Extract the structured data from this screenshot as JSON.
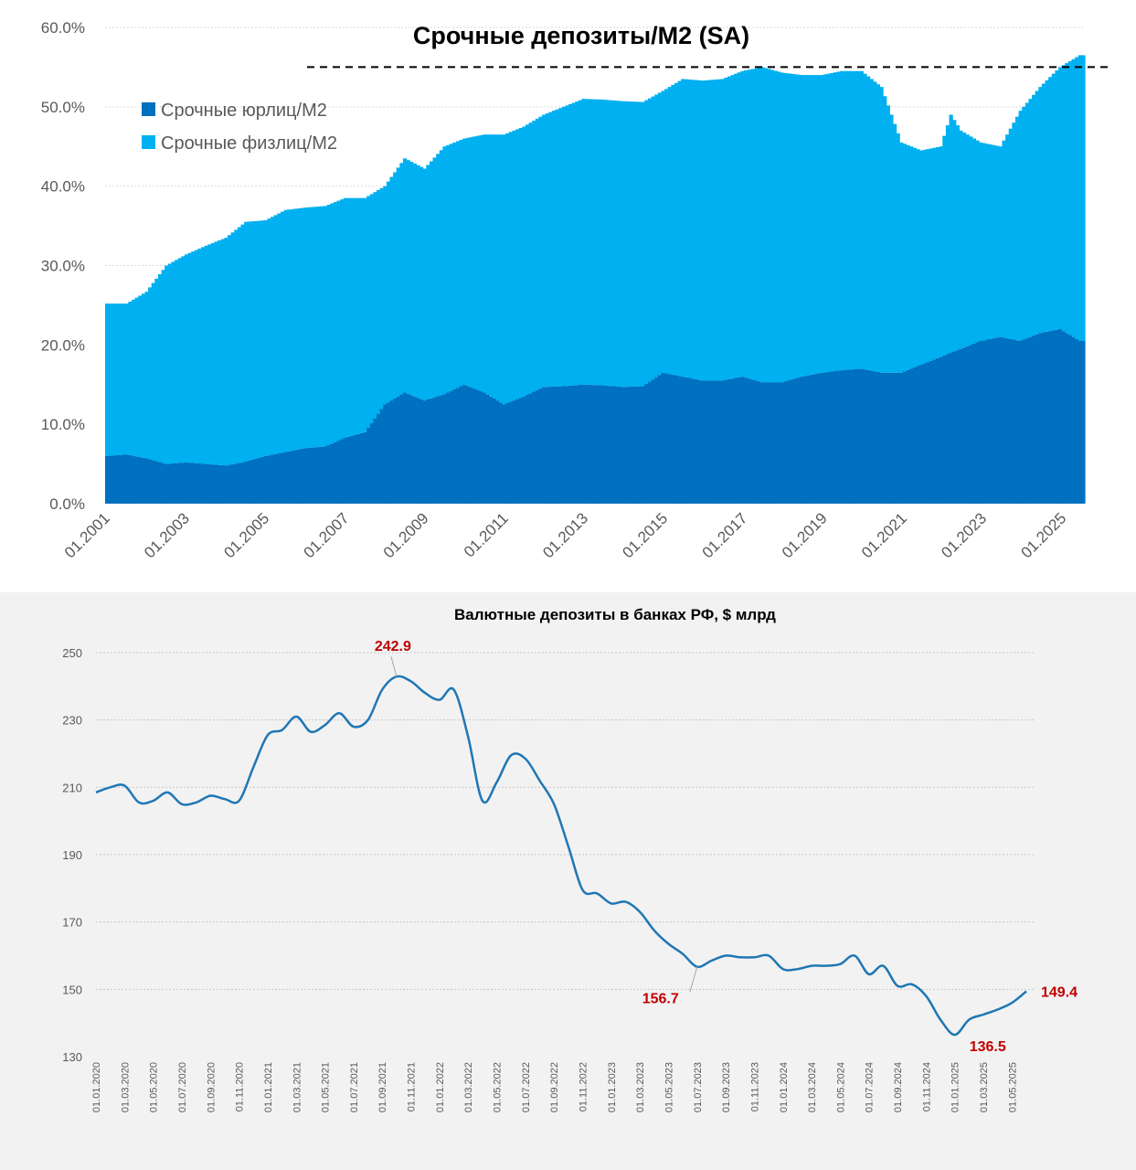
{
  "chart_data": [
    {
      "type": "area",
      "stacked": true,
      "title": "Срочные депозиты/М2 (SA)",
      "ylim": [
        0,
        60
      ],
      "y_tick_labels": [
        "0.0%",
        "10.0%",
        "20.0%",
        "30.0%",
        "40.0%",
        "50.0%",
        "60.0%"
      ],
      "x_tick_labels": [
        "01.2001",
        "01.2003",
        "01.2005",
        "01.2007",
        "01.2009",
        "01.2011",
        "01.2013",
        "01.2015",
        "01.2017",
        "01.2019",
        "01.2021",
        "01.2023",
        "01.2025"
      ],
      "grid": true,
      "legend_position": "top-left",
      "reference_line": {
        "style": "dashed",
        "value": 55.0
      },
      "x": [
        "01.2001",
        "07.2001",
        "01.2002",
        "07.2002",
        "01.2003",
        "07.2003",
        "01.2004",
        "07.2004",
        "01.2005",
        "07.2005",
        "01.2006",
        "07.2006",
        "01.2007",
        "07.2007",
        "01.2008",
        "07.2008",
        "01.2009",
        "07.2009",
        "01.2010",
        "07.2010",
        "01.2011",
        "07.2011",
        "01.2012",
        "07.2012",
        "01.2013",
        "07.2013",
        "01.2014",
        "07.2014",
        "01.2015",
        "07.2015",
        "01.2016",
        "07.2016",
        "01.2017",
        "07.2017",
        "01.2018",
        "07.2018",
        "01.2019",
        "07.2019",
        "01.2020",
        "07.2020",
        "01.2021",
        "07.2021",
        "01.2022",
        "04.2022",
        "07.2022",
        "01.2023",
        "07.2023",
        "01.2024",
        "07.2024",
        "01.2025",
        "07.2025"
      ],
      "series": [
        {
          "name": "Срочные юрлиц/М2",
          "color": "#0070c0",
          "values": [
            6.0,
            6.2,
            5.7,
            5.0,
            5.2,
            5.0,
            4.8,
            5.3,
            6.0,
            6.5,
            7.0,
            7.2,
            8.3,
            9.0,
            12.5,
            14.0,
            13.0,
            13.8,
            15.0,
            14.0,
            12.5,
            13.5,
            14.7,
            14.8,
            15.0,
            14.9,
            14.7,
            14.8,
            16.5,
            16.0,
            15.5,
            15.5,
            16.0,
            15.3,
            15.3,
            16.0,
            16.5,
            16.8,
            17.0,
            16.5,
            16.5,
            17.5,
            18.5,
            19.0,
            19.5,
            20.5,
            21.0,
            20.5,
            21.5,
            22.0,
            20.5
          ]
        },
        {
          "name": "Срочные физлиц/М2",
          "color": "#00b0f0",
          "values": [
            19.2,
            19.0,
            21.0,
            25.0,
            26.2,
            27.5,
            28.7,
            30.2,
            29.7,
            30.5,
            30.3,
            30.3,
            30.2,
            29.5,
            27.5,
            29.5,
            29.2,
            31.2,
            31.0,
            32.5,
            34.0,
            34.0,
            34.3,
            35.2,
            36.0,
            36.0,
            36.0,
            35.8,
            35.5,
            37.5,
            37.8,
            38.0,
            38.5,
            39.7,
            39.0,
            38.0,
            37.5,
            37.7,
            37.5,
            36.0,
            29.0,
            27.0,
            26.5,
            30.0,
            27.5,
            25.0,
            24.0,
            29.0,
            31.0,
            33.0,
            36.0
          ]
        }
      ]
    },
    {
      "type": "line",
      "title": "Валютные депозиты в банках РФ, $ млрд",
      "ylim": [
        130,
        250
      ],
      "y_tick_labels": [
        "130",
        "150",
        "170",
        "190",
        "210",
        "230",
        "250"
      ],
      "grid": true,
      "color": "#1f77b4",
      "x": [
        "01.01.2020",
        "01.02.2020",
        "01.03.2020",
        "01.04.2020",
        "01.05.2020",
        "01.06.2020",
        "01.07.2020",
        "01.08.2020",
        "01.09.2020",
        "01.10.2020",
        "01.11.2020",
        "01.12.2020",
        "01.01.2021",
        "01.02.2021",
        "01.03.2021",
        "01.04.2021",
        "01.05.2021",
        "01.06.2021",
        "01.07.2021",
        "01.08.2021",
        "01.09.2021",
        "01.10.2021",
        "01.11.2021",
        "01.12.2021",
        "01.01.2022",
        "01.02.2022",
        "01.03.2022",
        "01.04.2022",
        "01.05.2022",
        "01.06.2022",
        "01.07.2022",
        "01.08.2022",
        "01.09.2022",
        "01.10.2022",
        "01.11.2022",
        "01.12.2022",
        "01.01.2023",
        "01.02.2023",
        "01.03.2023",
        "01.04.2023",
        "01.05.2023",
        "01.06.2023",
        "01.07.2023",
        "01.08.2023",
        "01.09.2023",
        "01.10.2023",
        "01.11.2023",
        "01.12.2023",
        "01.01.2024",
        "01.02.2024",
        "01.03.2024",
        "01.04.2024",
        "01.05.2024",
        "01.06.2024",
        "01.07.2024",
        "01.08.2024",
        "01.09.2024",
        "01.10.2024",
        "01.11.2024",
        "01.12.2024",
        "01.01.2025",
        "01.02.2025",
        "01.03.2025",
        "01.04.2025",
        "01.05.2025",
        "01.06.2025"
      ],
      "x_tick_labels": [
        "01.01.2020",
        "01.03.2020",
        "01.05.2020",
        "01.07.2020",
        "01.09.2020",
        "01.11.2020",
        "01.01.2021",
        "01.03.2021",
        "01.05.2021",
        "01.07.2021",
        "01.09.2021",
        "01.11.2021",
        "01.01.2022",
        "01.03.2022",
        "01.05.2022",
        "01.07.2022",
        "01.09.2022",
        "01.11.2022",
        "01.01.2023",
        "01.03.2023",
        "01.05.2023",
        "01.07.2023",
        "01.09.2023",
        "01.11.2023",
        "01.01.2024",
        "01.03.2024",
        "01.05.2024",
        "01.07.2024",
        "01.09.2024",
        "01.11.2024",
        "01.01.2025",
        "01.03.2025",
        "01.05.2025"
      ],
      "values": [
        208.5,
        210.0,
        210.5,
        205.5,
        206.0,
        208.5,
        205.0,
        205.5,
        207.5,
        206.5,
        206.0,
        216.0,
        225.5,
        227.0,
        231.0,
        226.5,
        228.5,
        232.0,
        228.0,
        230.0,
        239.0,
        242.9,
        241.5,
        238.0,
        236.0,
        239.0,
        225.0,
        206.0,
        211.5,
        219.5,
        218.5,
        212.0,
        205.0,
        192.5,
        179.5,
        178.5,
        175.5,
        176.0,
        173.0,
        167.5,
        163.5,
        160.5,
        156.7,
        158.5,
        160.0,
        159.5,
        159.5,
        160.0,
        156.0,
        156.0,
        157.0,
        157.0,
        157.5,
        160.0,
        154.5,
        157.0,
        151.0,
        151.5,
        148.0,
        141.0,
        136.5,
        141.0,
        142.5,
        144.0,
        146.0,
        149.4
      ],
      "annotations": [
        {
          "label": "242.9",
          "x": "01.10.2021",
          "y": 242.9
        },
        {
          "label": "156.7",
          "x": "01.07.2023",
          "y": 156.7
        },
        {
          "label": "136.5",
          "x": "01.01.2025",
          "y": 136.5
        },
        {
          "label": "149.4",
          "x": "01.06.2025",
          "y": 149.4
        }
      ]
    }
  ]
}
